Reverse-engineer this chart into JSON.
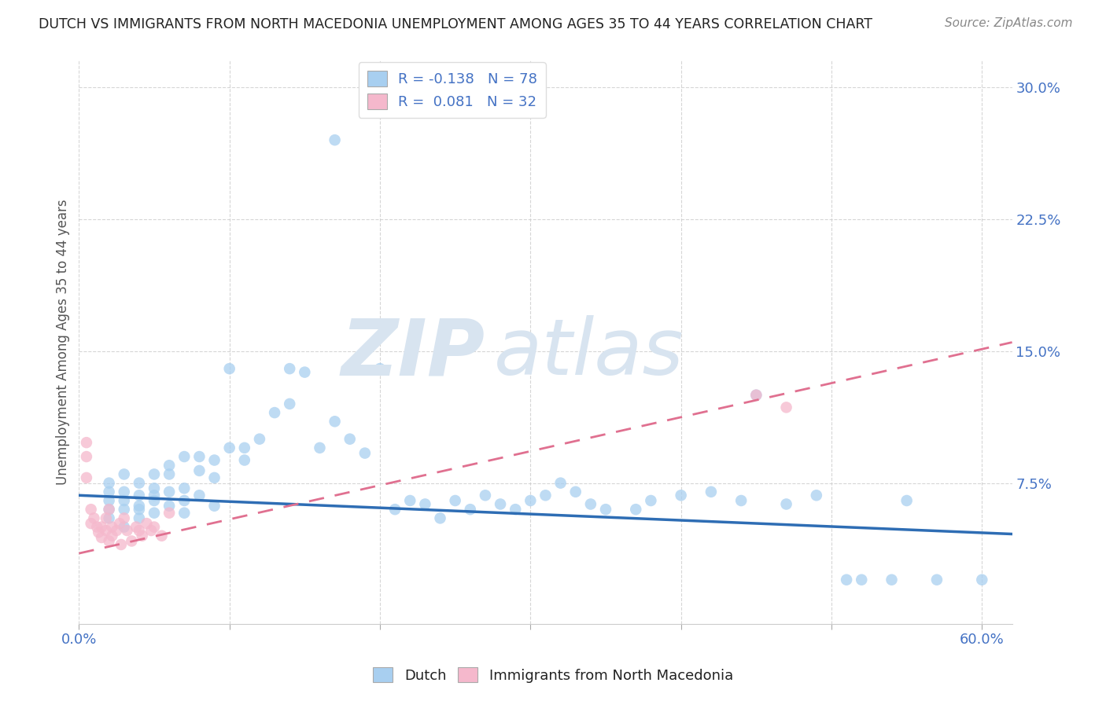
{
  "title": "DUTCH VS IMMIGRANTS FROM NORTH MACEDONIA UNEMPLOYMENT AMONG AGES 35 TO 44 YEARS CORRELATION CHART",
  "source": "Source: ZipAtlas.com",
  "ylabel": "Unemployment Among Ages 35 to 44 years",
  "xlim": [
    0.0,
    0.62
  ],
  "ylim": [
    -0.005,
    0.315
  ],
  "dutch_R": -0.138,
  "dutch_N": 78,
  "immigrant_R": 0.081,
  "immigrant_N": 32,
  "dutch_color": "#a8cff0",
  "immigrant_color": "#f5b8cc",
  "dutch_line_color": "#2e6db4",
  "immigrant_line_color": "#e07090",
  "watermark_zip": "ZIP",
  "watermark_atlas": "atlas",
  "watermark_color": "#d8e4f0",
  "dutch_line_x0": 0.0,
  "dutch_line_y0": 0.068,
  "dutch_line_x1": 0.62,
  "dutch_line_y1": 0.046,
  "imm_line_x0": 0.0,
  "imm_line_y0": 0.035,
  "imm_line_x1": 0.62,
  "imm_line_y1": 0.155,
  "dutch_x": [
    0.02,
    0.02,
    0.02,
    0.02,
    0.02,
    0.03,
    0.03,
    0.03,
    0.03,
    0.03,
    0.04,
    0.04,
    0.04,
    0.04,
    0.04,
    0.05,
    0.05,
    0.05,
    0.05,
    0.05,
    0.06,
    0.06,
    0.06,
    0.06,
    0.07,
    0.07,
    0.07,
    0.07,
    0.08,
    0.08,
    0.08,
    0.09,
    0.09,
    0.09,
    0.1,
    0.1,
    0.11,
    0.11,
    0.12,
    0.13,
    0.14,
    0.14,
    0.15,
    0.16,
    0.17,
    0.17,
    0.18,
    0.19,
    0.2,
    0.21,
    0.22,
    0.23,
    0.24,
    0.25,
    0.26,
    0.27,
    0.28,
    0.29,
    0.3,
    0.31,
    0.32,
    0.33,
    0.34,
    0.35,
    0.37,
    0.38,
    0.4,
    0.42,
    0.44,
    0.45,
    0.47,
    0.49,
    0.51,
    0.52,
    0.54,
    0.55,
    0.57,
    0.6
  ],
  "dutch_y": [
    0.06,
    0.07,
    0.055,
    0.065,
    0.075,
    0.06,
    0.065,
    0.07,
    0.05,
    0.08,
    0.06,
    0.068,
    0.075,
    0.055,
    0.062,
    0.065,
    0.072,
    0.058,
    0.08,
    0.068,
    0.07,
    0.062,
    0.08,
    0.085,
    0.072,
    0.065,
    0.09,
    0.058,
    0.068,
    0.082,
    0.09,
    0.078,
    0.062,
    0.088,
    0.095,
    0.14,
    0.088,
    0.095,
    0.1,
    0.115,
    0.12,
    0.14,
    0.138,
    0.095,
    0.11,
    0.27,
    0.1,
    0.092,
    0.14,
    0.06,
    0.065,
    0.063,
    0.055,
    0.065,
    0.06,
    0.068,
    0.063,
    0.06,
    0.065,
    0.068,
    0.075,
    0.07,
    0.063,
    0.06,
    0.06,
    0.065,
    0.068,
    0.07,
    0.065,
    0.125,
    0.063,
    0.068,
    0.02,
    0.02,
    0.02,
    0.065,
    0.02,
    0.02
  ],
  "imm_x": [
    0.005,
    0.005,
    0.005,
    0.008,
    0.008,
    0.01,
    0.012,
    0.013,
    0.015,
    0.015,
    0.018,
    0.018,
    0.02,
    0.02,
    0.022,
    0.022,
    0.025,
    0.027,
    0.028,
    0.03,
    0.032,
    0.035,
    0.038,
    0.04,
    0.042,
    0.045,
    0.048,
    0.05,
    0.055,
    0.06,
    0.45,
    0.47
  ],
  "imm_y": [
    0.078,
    0.09,
    0.098,
    0.06,
    0.052,
    0.055,
    0.05,
    0.047,
    0.044,
    0.05,
    0.048,
    0.055,
    0.06,
    0.042,
    0.05,
    0.045,
    0.048,
    0.052,
    0.04,
    0.055,
    0.048,
    0.042,
    0.05,
    0.048,
    0.045,
    0.052,
    0.048,
    0.05,
    0.045,
    0.058,
    0.125,
    0.118
  ]
}
